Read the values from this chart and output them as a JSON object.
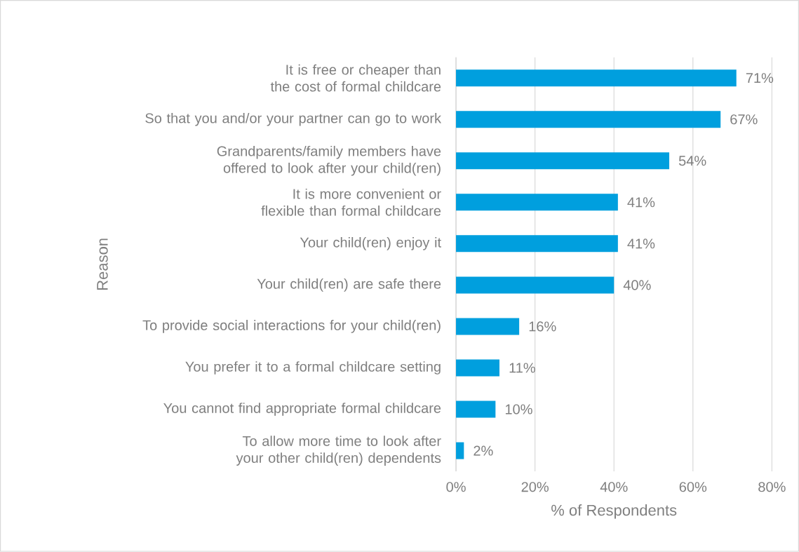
{
  "chart_data": {
    "type": "bar",
    "orientation": "horizontal",
    "xlabel": "% of Respondents",
    "ylabel": "Reason",
    "categories": [
      "It is free or cheaper than the cost of formal childcare",
      "So that you and/or your partner can go to work",
      "Grandparents/family members have offered to look after your child(ren)",
      "It is more convenient or flexible than formal childcare",
      "Your child(ren) enjoy it",
      "Your child(ren) are safe there",
      "To provide social interactions for your child(ren)",
      "You prefer it to a formal childcare setting",
      "You cannot find appropriate formal childcare",
      "To allow more time to look after your other child(ren) dependents"
    ],
    "values": [
      71,
      67,
      54,
      41,
      41,
      40,
      16,
      11,
      10,
      2
    ],
    "value_labels": [
      "71%",
      "67%",
      "54%",
      "41%",
      "41%",
      "40%",
      "16%",
      "11%",
      "10%",
      "2%"
    ],
    "color": "#009fde",
    "xlim": [
      0,
      80
    ],
    "xticks": [
      {
        "value": 0,
        "label": "0%"
      },
      {
        "value": 20,
        "label": "20%"
      },
      {
        "value": 40,
        "label": "40%"
      },
      {
        "value": 60,
        "label": "60%"
      },
      {
        "value": 80,
        "label": "80%"
      }
    ],
    "grid": "x"
  }
}
